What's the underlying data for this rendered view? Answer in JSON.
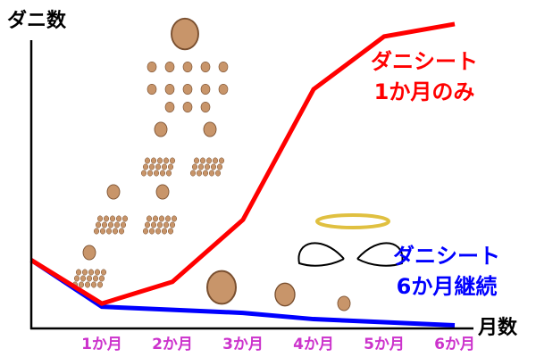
{
  "chart_data": {
    "type": "line",
    "y_label": "ダニ数",
    "x_label": "月数",
    "categories": [
      null,
      "1か月",
      "2か月",
      "3か月",
      "4か月",
      "5か月",
      "6か月"
    ],
    "series": [
      {
        "name": "ダニシート\n1か月のみ",
        "color": "#ff0000",
        "values": [
          22,
          8,
          15,
          35,
          77,
          94,
          98
        ]
      },
      {
        "name": "ダニシート\n6か月継続",
        "color": "#0000ff",
        "values": [
          22,
          7,
          6,
          5,
          3,
          2,
          1
        ]
      }
    ],
    "ylim": [
      0,
      100
    ],
    "tick_color": "#cc33cc"
  }
}
